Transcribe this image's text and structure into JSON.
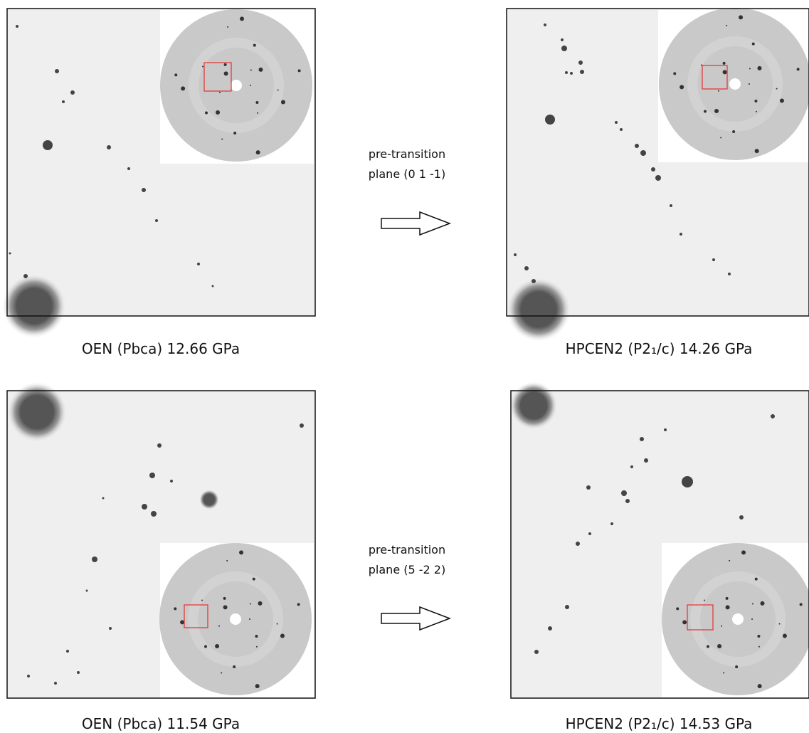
{
  "panels": [
    {
      "caption": "OEN (Pbca) 12.66 GPa"
    },
    {
      "caption": "HPCEN2 (P2₁/c) 14.26 GPa"
    },
    {
      "caption": "OEN (Pbca) 11.54 GPa"
    },
    {
      "caption": "HPCEN2 (P2₁/c) 14.53 GPa"
    }
  ],
  "transitions": [
    {
      "line1": "pre-transition",
      "line2": "plane (0 1 -1)"
    },
    {
      "line1": "pre-transition",
      "line2": "plane (5 -2 2)"
    }
  ]
}
